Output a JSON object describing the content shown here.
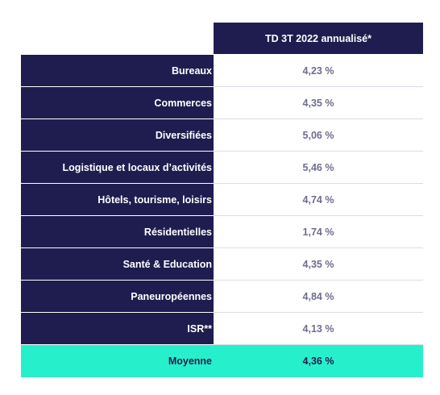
{
  "colors": {
    "navy": "#1f1d4f",
    "value_text": "#6e6c93",
    "accent": "#26f0cc",
    "separator": "#dcdce6"
  },
  "table": {
    "header": "TD 3T 2022 annualisé*",
    "rows": [
      {
        "label": "Bureaux",
        "value": "4,23 %"
      },
      {
        "label": "Commerces",
        "value": "4,35 %"
      },
      {
        "label": "Diversifiées",
        "value": "5,06 %"
      },
      {
        "label": "Logistique et locaux d’activités",
        "value": "5,46 %"
      },
      {
        "label": "Hôtels, tourisme, loisirs",
        "value": "4,74 %"
      },
      {
        "label": "Résidentielles",
        "value": "1,74 %"
      },
      {
        "label": "Santé & Education",
        "value": "4,35 %"
      },
      {
        "label": "Paneuropéennes",
        "value": "4,84 %"
      },
      {
        "label": "ISR**",
        "value": "4,13 %"
      }
    ],
    "average": {
      "label": "Moyenne",
      "value": "4,36 %"
    }
  }
}
